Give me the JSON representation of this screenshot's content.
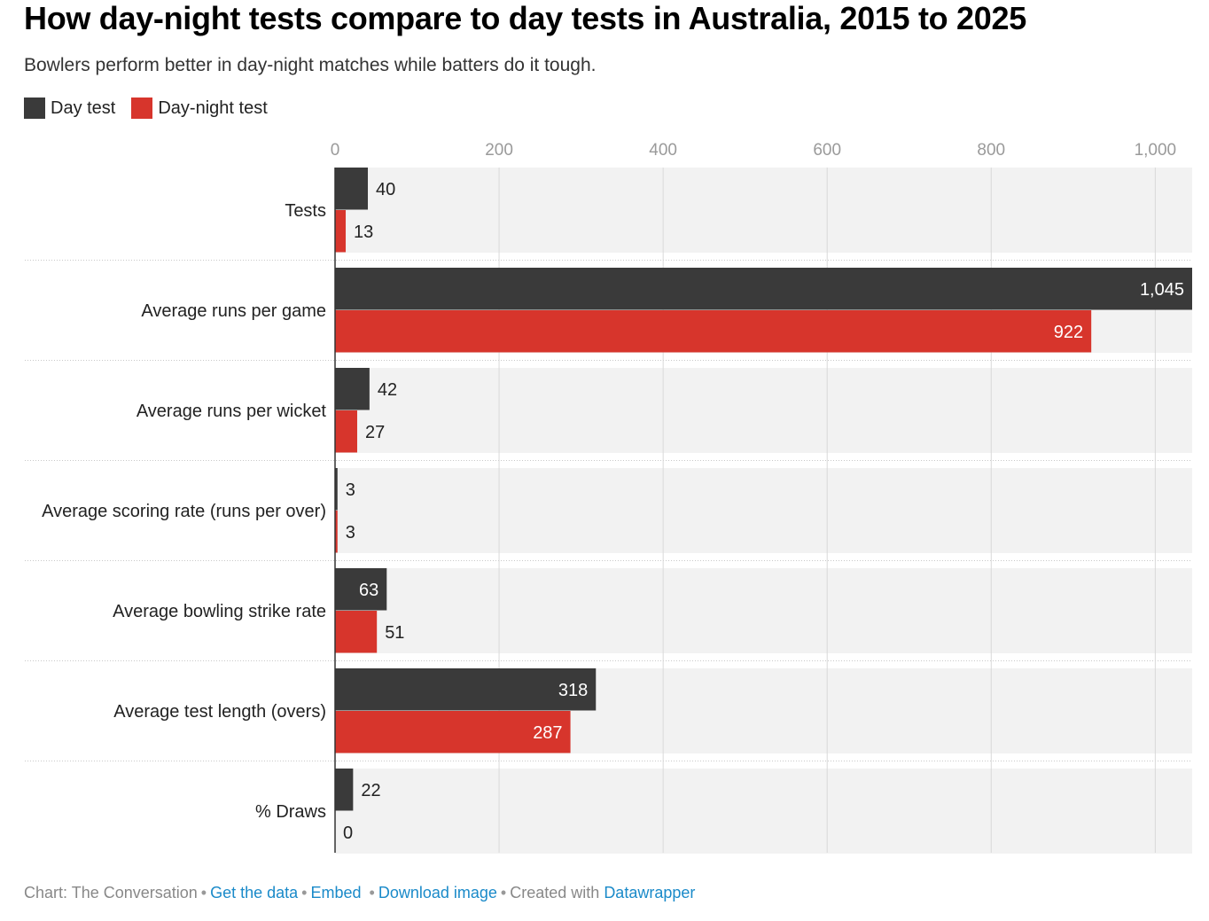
{
  "title": "How day-night tests compare to day tests in Australia, 2015 to 2025",
  "subtitle": "Bowlers perform better in day-night matches while batters do it tough.",
  "legend": [
    {
      "label": "Day test",
      "color": "#3a3a3a"
    },
    {
      "label": "Day-night test",
      "color": "#d7352c"
    }
  ],
  "chart_data": {
    "type": "bar",
    "orientation": "horizontal",
    "categories": [
      "Tests",
      "Average runs per game",
      "Average runs per wicket",
      "Average scoring rate (runs per over)",
      "Average bowling strike rate",
      "Average test length (overs)",
      "% Draws"
    ],
    "series": [
      {
        "name": "Day test",
        "color": "#3a3a3a",
        "values": [
          40,
          1045,
          42,
          3,
          63,
          318,
          22
        ],
        "labels": [
          "40",
          "1,045",
          "42",
          "3",
          "63",
          "318",
          "22"
        ]
      },
      {
        "name": "Day-night test",
        "color": "#d7352c",
        "values": [
          13,
          922,
          27,
          3,
          51,
          287,
          0
        ],
        "labels": [
          "13",
          "922",
          "27",
          "3",
          "51",
          "287",
          "0"
        ]
      }
    ],
    "xlim": [
      0,
      1045
    ],
    "xticks": [
      0,
      200,
      400,
      600,
      800,
      1000
    ],
    "xtick_labels": [
      "0",
      "200",
      "400",
      "600",
      "800",
      "1,000"
    ]
  },
  "footer": {
    "credit": "Chart: The Conversation",
    "get_data": "Get the data",
    "embed": "Embed",
    "download": "Download image",
    "created_with": "Created with",
    "datawrapper": "Datawrapper"
  }
}
